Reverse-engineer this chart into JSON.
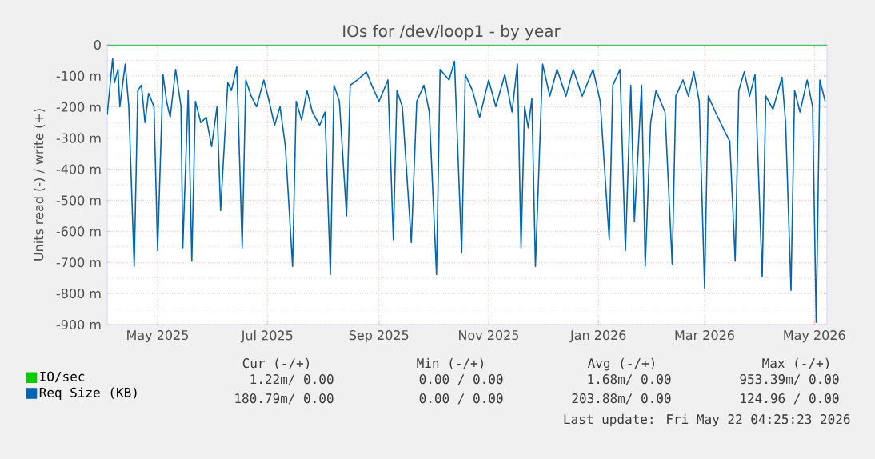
{
  "chart_data": {
    "type": "line",
    "title": "IOs for /dev/loop1 - by year",
    "ylabel": "Units read (-) / write (+)",
    "xlim": [
      "2025-04-03",
      "2026-05-08"
    ],
    "xticks": [
      {
        "value": "2025-05-01",
        "label": "May 2025"
      },
      {
        "value": "2025-07-01",
        "label": "Jul 2025"
      },
      {
        "value": "2025-09-01",
        "label": "Sep 2025"
      },
      {
        "value": "2025-11-01",
        "label": "Nov 2025"
      },
      {
        "value": "2026-01-01",
        "label": "Jan 2026"
      },
      {
        "value": "2026-03-01",
        "label": "Mar 2026"
      },
      {
        "value": "2026-05-01",
        "label": "May 2026"
      }
    ],
    "ylim": [
      -900,
      0
    ],
    "yticks": [
      {
        "value": -900,
        "label": "-900 m"
      },
      {
        "value": -800,
        "label": "-800 m"
      },
      {
        "value": -700,
        "label": "-700 m"
      },
      {
        "value": -600,
        "label": "-600 m"
      },
      {
        "value": -500,
        "label": "-500 m"
      },
      {
        "value": -400,
        "label": "-400 m"
      },
      {
        "value": -300,
        "label": "-300 m"
      },
      {
        "value": -200,
        "label": "-200 m"
      },
      {
        "value": -100,
        "label": "-100 m"
      },
      0
    ],
    "grid": true,
    "legend": "bottom",
    "series": [
      {
        "name": "IO/sec",
        "color": "#00cc00",
        "x": [
          "2025-04-03",
          "2026-05-08"
        ],
        "values": [
          0,
          0
        ]
      },
      {
        "name": "Req Size (KB)",
        "color": "#0066b3",
        "x": [
          "2025-04-03",
          "2025-04-06",
          "2025-04-07",
          "2025-04-09",
          "2025-04-10",
          "2025-04-13",
          "2025-04-15",
          "2025-04-18",
          "2025-04-20",
          "2025-04-22",
          "2025-04-24",
          "2025-04-26",
          "2025-04-29",
          "2025-05-01",
          "2025-05-04",
          "2025-05-06",
          "2025-05-08",
          "2025-05-11",
          "2025-05-14",
          "2025-05-15",
          "2025-05-18",
          "2025-05-20",
          "2025-05-22",
          "2025-05-25",
          "2025-05-28",
          "2025-05-31",
          "2025-06-03",
          "2025-06-05",
          "2025-06-09",
          "2025-06-11",
          "2025-06-14",
          "2025-06-17",
          "2025-06-19",
          "2025-06-22",
          "2025-06-25",
          "2025-06-29",
          "2025-07-02",
          "2025-07-05",
          "2025-07-08",
          "2025-07-11",
          "2025-07-15",
          "2025-07-17",
          "2025-07-20",
          "2025-07-23",
          "2025-07-26",
          "2025-07-30",
          "2025-08-02",
          "2025-08-05",
          "2025-08-07",
          "2025-08-10",
          "2025-08-14",
          "2025-08-16",
          "2025-08-20",
          "2025-08-25",
          "2025-08-28",
          "2025-09-01",
          "2025-09-06",
          "2025-09-09",
          "2025-09-11",
          "2025-09-14",
          "2025-09-19",
          "2025-09-22",
          "2025-09-26",
          "2025-09-29",
          "2025-10-03",
          "2025-10-05",
          "2025-10-10",
          "2025-10-13",
          "2025-10-17",
          "2025-10-19",
          "2025-10-23",
          "2025-10-27",
          "2025-11-01",
          "2025-11-05",
          "2025-11-10",
          "2025-11-14",
          "2025-11-17",
          "2025-11-19",
          "2025-11-21",
          "2025-11-23",
          "2025-11-25",
          "2025-11-27",
          "2025-12-01",
          "2025-12-05",
          "2025-12-09",
          "2025-12-14",
          "2025-12-18",
          "2025-12-23",
          "2025-12-29",
          "2026-01-02",
          "2026-01-07",
          "2026-01-09",
          "2026-01-13",
          "2026-01-16",
          "2026-01-19",
          "2026-01-21",
          "2026-01-25",
          "2026-01-27",
          "2026-01-30",
          "2026-02-02",
          "2026-02-07",
          "2026-02-11",
          "2026-02-13",
          "2026-02-17",
          "2026-02-20",
          "2026-02-23",
          "2026-02-26",
          "2026-03-01",
          "2026-03-03",
          "2026-03-07",
          "2026-03-12",
          "2026-03-15",
          "2026-03-18",
          "2026-03-20",
          "2026-03-23",
          "2026-03-26",
          "2026-03-29",
          "2026-04-02",
          "2026-04-04",
          "2026-04-08",
          "2026-04-13",
          "2026-04-15",
          "2026-04-18",
          "2026-04-20",
          "2026-04-23",
          "2026-04-27",
          "2026-04-30",
          "2026-05-02",
          "2026-05-04",
          "2026-05-07"
        ],
        "values": [
          -225,
          -45,
          -122,
          -79,
          -199,
          -62,
          -199,
          -713,
          -147,
          -130,
          -250,
          -156,
          -199,
          -662,
          -96,
          -182,
          -233,
          -79,
          -199,
          -653,
          -147,
          -696,
          -182,
          -250,
          -233,
          -327,
          -199,
          -533,
          -122,
          -147,
          -70,
          -653,
          -113,
          -165,
          -199,
          -113,
          -182,
          -259,
          -199,
          -327,
          -713,
          -182,
          -242,
          -147,
          -216,
          -259,
          -216,
          -739,
          -130,
          -182,
          -550,
          -130,
          -113,
          -87,
          -130,
          -182,
          -113,
          -627,
          -147,
          -199,
          -636,
          -182,
          -130,
          -216,
          -739,
          -79,
          -113,
          -53,
          -670,
          -96,
          -147,
          -233,
          -113,
          -199,
          -96,
          -216,
          -62,
          -653,
          -199,
          -267,
          -173,
          -713,
          -62,
          -165,
          -79,
          -165,
          -79,
          -165,
          -79,
          -182,
          -627,
          -130,
          -79,
          -662,
          -130,
          -567,
          -130,
          -713,
          -250,
          -147,
          -216,
          -705,
          -165,
          -113,
          -165,
          -87,
          -182,
          -782,
          -165,
          -216,
          -276,
          -310,
          -696,
          -147,
          -87,
          -165,
          -96,
          -747,
          -165,
          -207,
          -104,
          -250,
          -790,
          -147,
          -216,
          -113,
          -199,
          -893,
          -113,
          -182
        ]
      }
    ],
    "annotations": [
      "Cur (-/+)",
      "Min (-/+)",
      "Avg (-/+)",
      "Max (-/+)",
      "1.22m/ 0.00",
      "0.00 / 0.00",
      "1.68m/ 0.00",
      "953.39m/ 0.00",
      "180.79m/ 0.00",
      "0.00 / 0.00",
      "203.88m/ 0.00",
      "124.96 / 0.00",
      "Last update: Fri May 22 04:25:23 2026"
    ]
  }
}
